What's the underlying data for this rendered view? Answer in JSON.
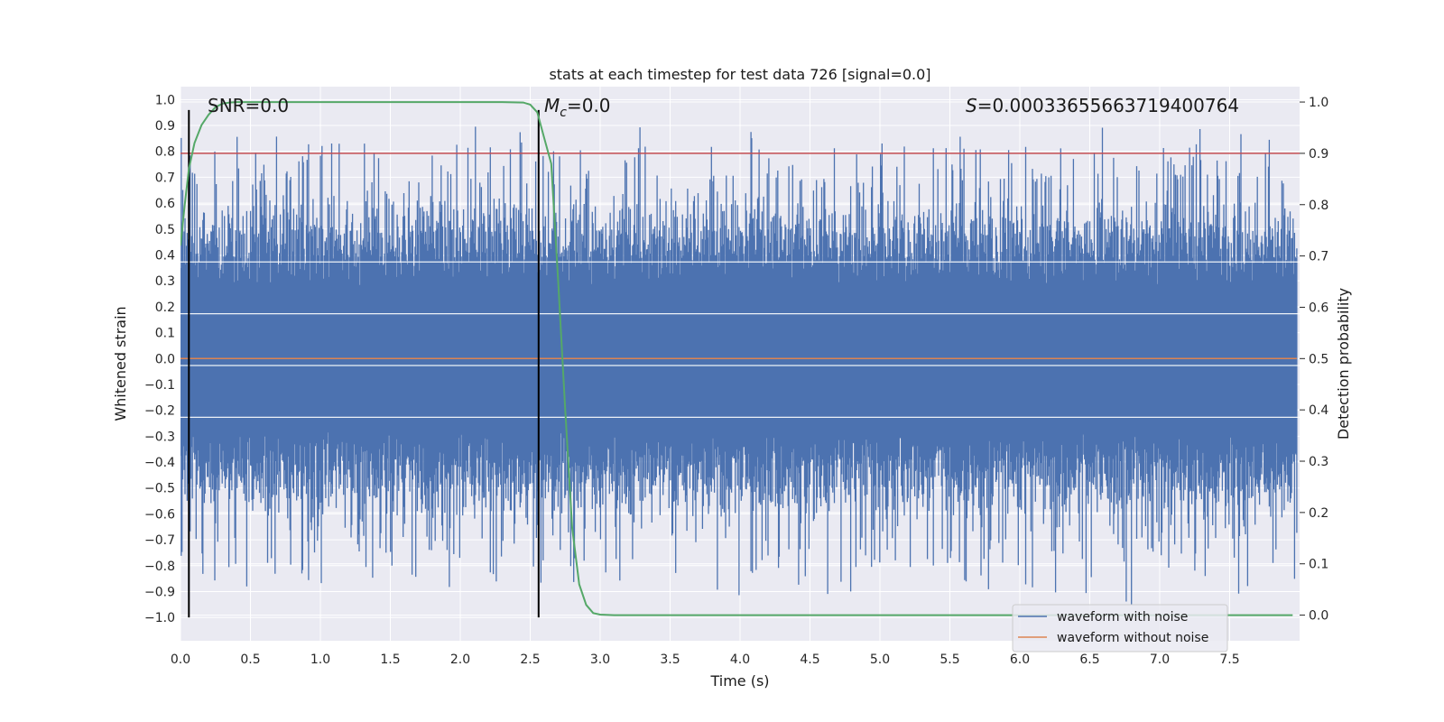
{
  "chart_data": {
    "type": "line",
    "title": "stats at each timestep for test data 726 [signal=0.0]",
    "xlabel": "Time (s)",
    "ylabel_left": "Whitened strain",
    "ylabel_right": "Detection probability",
    "xlim": [
      0.0,
      8.0
    ],
    "ylim_left": [
      -1.09,
      1.05
    ],
    "ylim_right": [
      -0.05,
      1.03
    ],
    "x_ticks": [
      0.0,
      0.5,
      1.0,
      1.5,
      2.0,
      2.5,
      3.0,
      3.5,
      4.0,
      4.5,
      5.0,
      5.5,
      6.0,
      6.5,
      7.0,
      7.5
    ],
    "x_tick_labels": [
      "0.0",
      "0.5",
      "1.0",
      "1.5",
      "2.0",
      "2.5",
      "3.0",
      "3.5",
      "4.0",
      "4.5",
      "5.0",
      "5.5",
      "6.0",
      "6.5",
      "7.0",
      "7.5"
    ],
    "y_left_ticks": [
      1.0,
      0.9,
      0.8,
      0.7,
      0.6,
      0.5,
      0.4,
      0.3,
      0.2,
      0.1,
      0.0,
      -0.1,
      -0.2,
      -0.3,
      -0.4,
      -0.5,
      -0.6,
      -0.7,
      -0.8,
      -0.9,
      -1.0
    ],
    "y_left_tick_labels": [
      "1.0",
      "0.9",
      "0.8",
      "0.7",
      "0.6",
      "0.5",
      "0.4",
      "0.3",
      "0.2",
      "0.1",
      "0.0",
      "−0.1",
      "−0.2",
      "−0.3",
      "−0.4",
      "−0.5",
      "−0.6",
      "−0.7",
      "−0.8",
      "−0.9",
      "−1.0"
    ],
    "y_right_ticks": [
      1.0,
      0.9,
      0.8,
      0.7,
      0.6,
      0.5,
      0.4,
      0.3,
      0.2,
      0.1,
      0.0
    ],
    "y_right_tick_labels": [
      "1.0",
      "0.9",
      "0.8",
      "0.7",
      "0.6",
      "0.5",
      "0.4",
      "0.3",
      "0.2",
      "0.1",
      "0.0"
    ],
    "grid": true,
    "legend_location": "lower-right",
    "series": [
      {
        "name": "waveform with noise",
        "axis": "left",
        "color": "#4c72b0",
        "style": "noise",
        "amplitude_range": [
          -1.0,
          0.96
        ],
        "x_range": [
          0.0,
          7.98
        ]
      },
      {
        "name": "waveform without noise",
        "axis": "left",
        "color": "#dd8452",
        "x": [
          0.0,
          7.98
        ],
        "y": [
          0.0,
          0.0
        ]
      },
      {
        "name": "detection probability",
        "axis": "right",
        "color": "#55a868",
        "x": [
          0.0,
          0.03,
          0.06,
          0.1,
          0.15,
          0.2,
          0.25,
          0.3,
          0.35,
          0.4,
          0.6,
          1.0,
          1.5,
          2.0,
          2.3,
          2.45,
          2.5,
          2.55,
          2.6,
          2.65,
          2.7,
          2.75,
          2.8,
          2.85,
          2.9,
          2.95,
          3.0,
          3.1,
          7.95
        ],
        "y": [
          0.72,
          0.8,
          0.87,
          0.92,
          0.955,
          0.975,
          0.99,
          0.997,
          0.999,
          1.0,
          1.0,
          1.0,
          1.0,
          1.0,
          1.0,
          0.999,
          0.995,
          0.98,
          0.93,
          0.88,
          0.65,
          0.4,
          0.17,
          0.06,
          0.02,
          0.004,
          0.001,
          0.0,
          0.0
        ]
      }
    ],
    "threshold_line": {
      "axis": "right",
      "value": 0.9,
      "color": "#c44e52"
    },
    "vertical_lines": [
      {
        "x": 0.06,
        "y_left_range": [
          -1.0,
          0.96
        ],
        "color": "#000000"
      },
      {
        "x": 2.56,
        "y_left_range": [
          -1.0,
          0.96
        ],
        "color": "#000000"
      }
    ],
    "annotations": {
      "snr_label": "SNR=0.0",
      "mc_symbol": "M",
      "mc_subscript": "c",
      "mc_value": "=0.0",
      "s_symbol": "S",
      "s_value": "=0.00033655663719400764"
    },
    "colors": {
      "axes_bg": "#eaeaf2",
      "grid": "#ffffff"
    }
  }
}
